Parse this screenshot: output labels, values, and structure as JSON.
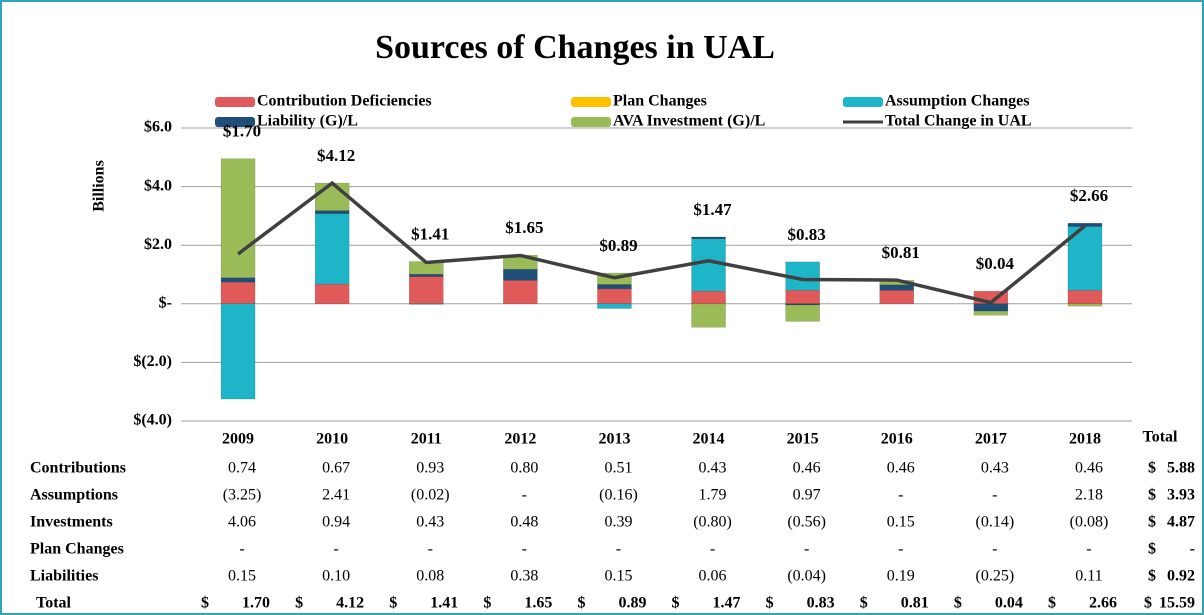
{
  "chart_data": {
    "type": "bar",
    "title": "Sources of Changes in UAL",
    "y_label": "Billions",
    "categories": [
      "2009",
      "2010",
      "2011",
      "2012",
      "2013",
      "2014",
      "2015",
      "2016",
      "2017",
      "2018"
    ],
    "series": [
      {
        "name": "Contribution Deficiencies",
        "color": "#e05a5a",
        "values": [
          0.74,
          0.67,
          0.93,
          0.8,
          0.51,
          0.43,
          0.46,
          0.46,
          0.43,
          0.46
        ]
      },
      {
        "name": "Plan Changes",
        "color": "#ffc000",
        "values": [
          0,
          0,
          0,
          0,
          0,
          0,
          0,
          0,
          0,
          0
        ]
      },
      {
        "name": "Assumption Changes",
        "color": "#1fb5c9",
        "values": [
          -3.25,
          2.41,
          -0.02,
          0,
          -0.16,
          1.79,
          0.97,
          0,
          0,
          2.18
        ]
      },
      {
        "name": "Liability (G)/L",
        "color": "#1f4e79",
        "values": [
          0.15,
          0.1,
          0.08,
          0.38,
          0.15,
          0.06,
          -0.04,
          0.19,
          -0.25,
          0.11
        ]
      },
      {
        "name": "AVA Investment (G)/L",
        "color": "#9bbb59",
        "values": [
          4.06,
          0.94,
          0.43,
          0.48,
          0.39,
          -0.8,
          -0.56,
          0.15,
          -0.14,
          -0.08
        ]
      },
      {
        "name": "Total Change in UAL",
        "type": "line",
        "color": "#404040",
        "values": [
          1.7,
          4.12,
          1.41,
          1.65,
          0.89,
          1.47,
          0.83,
          0.81,
          0.04,
          2.66
        ],
        "value_labels": [
          "$1.70",
          "$4.12",
          "$1.41",
          "$1.65",
          "$0.89",
          "$1.47",
          "$0.83",
          "$0.81",
          "$0.04",
          "$2.66"
        ]
      }
    ],
    "ylim": [
      -4,
      6
    ],
    "yticks": [
      {
        "value": -4,
        "label": "$(4.0)"
      },
      {
        "value": -2,
        "label": "$(2.0)"
      },
      {
        "value": 0,
        "label": "$-"
      },
      {
        "value": 2,
        "label": "$2.0"
      },
      {
        "value": 4,
        "label": "$4.0"
      },
      {
        "value": 6,
        "label": "$6.0"
      }
    ],
    "grid": true
  },
  "table": {
    "total_header": "Total",
    "currency": "$",
    "rows": [
      {
        "label": "Contributions",
        "cells": [
          "0.74",
          "0.67",
          "0.93",
          "0.80",
          "0.51",
          "0.43",
          "0.46",
          "0.46",
          "0.43",
          "0.46"
        ],
        "total": "5.88"
      },
      {
        "label": "Assumptions",
        "cells": [
          "(3.25)",
          "2.41",
          "(0.02)",
          "-",
          "(0.16)",
          "1.79",
          "0.97",
          "-",
          "-",
          "2.18"
        ],
        "total": "3.93"
      },
      {
        "label": "Investments",
        "cells": [
          "4.06",
          "0.94",
          "0.43",
          "0.48",
          "0.39",
          "(0.80)",
          "(0.56)",
          "0.15",
          "(0.14)",
          "(0.08)"
        ],
        "total": "4.87"
      },
      {
        "label": "Plan Changes",
        "cells": [
          "-",
          "-",
          "-",
          "-",
          "-",
          "-",
          "-",
          "-",
          "-",
          "-"
        ],
        "total": "-"
      },
      {
        "label": "Liabilities",
        "cells": [
          "0.15",
          "0.10",
          "0.08",
          "0.38",
          "0.15",
          "0.06",
          "(0.04)",
          "0.19",
          "(0.25)",
          "0.11"
        ],
        "total": "0.92"
      }
    ],
    "total_row": {
      "label": "Total",
      "cells": [
        "1.70",
        "4.12",
        "1.41",
        "1.65",
        "0.89",
        "1.47",
        "0.83",
        "0.81",
        "0.04",
        "2.66"
      ],
      "total": "15.59"
    }
  }
}
